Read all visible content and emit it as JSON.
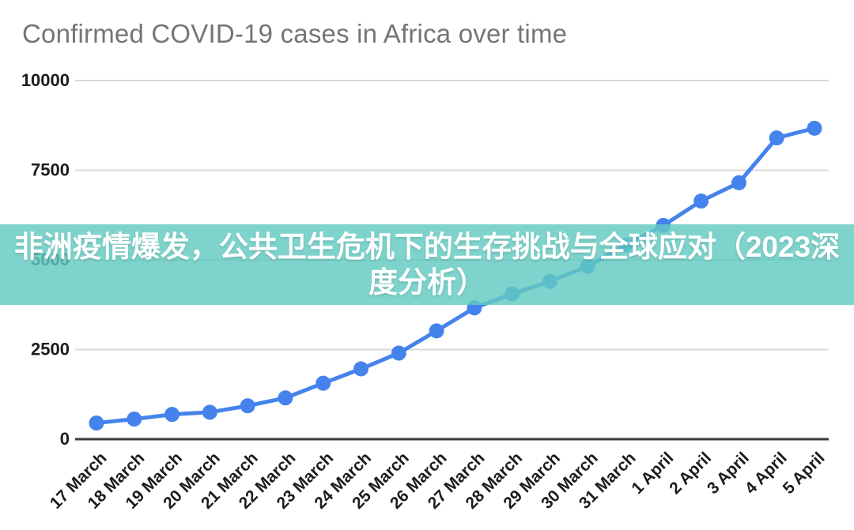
{
  "page": {
    "background_color": "#ffffff"
  },
  "header": {
    "title": "Confirmed COVID-19 cases in Africa over time",
    "title_color": "#757575"
  },
  "banner": {
    "line1": "非洲疫情爆发，公共卫生危机下的生存挑战与全球应对（2023深",
    "line2": "度分析）",
    "text_color": "#ffffff",
    "background_rgba": "rgba(98,203,193,0.82)"
  },
  "chart_data": {
    "type": "line",
    "title": "Confirmed COVID-19 cases in Africa over time",
    "categories": [
      "17 March",
      "18 March",
      "19 March",
      "20 March",
      "21 March",
      "22 March",
      "23 March",
      "24 March",
      "25 March",
      "26 March",
      "27 March",
      "28 March",
      "29 March",
      "30 March",
      "31 March",
      "1 April",
      "2 April",
      "3 April",
      "4 April",
      "5 April"
    ],
    "values": [
      450,
      560,
      690,
      750,
      930,
      1150,
      1560,
      1960,
      2400,
      3020,
      3660,
      4050,
      4400,
      4820,
      5410,
      5960,
      6640,
      7150,
      8400,
      8670
    ],
    "y_ticks": [
      0,
      2500,
      5000,
      7500,
      10000
    ],
    "ylim": [
      0,
      10000
    ],
    "xlabel": "",
    "ylabel": "",
    "grid": true,
    "legend": "none",
    "line_color": "#4583ec",
    "point_color": "#4583ec",
    "gridline_color": "#d9d9d9",
    "axis_line_color": "#3a3a3a",
    "tick_label_color": "#1c1c1c"
  }
}
